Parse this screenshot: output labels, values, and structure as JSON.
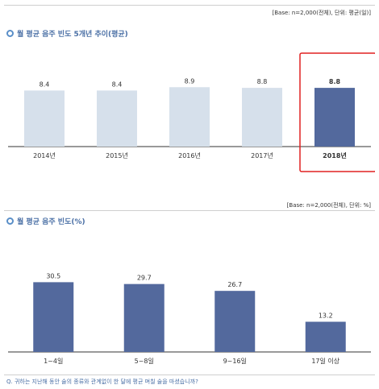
{
  "chart1": {
    "base_note": "[Base: n=2,000(전체), 단위: 평균(일)]",
    "title": "월 평균 음주 빈도 5개년 추이(평균)"
  },
  "chart2": {
    "base_note": "[Base: n=2,000(전체), 단위: %]",
    "title": "월 평균 음주 빈도(%)"
  },
  "question": "Q. 귀하는 지난해 동안 술의 종류와 관계없이 한 달에 평균 며칠 술을 마셨습니까?",
  "colors": {
    "light_bar": "#d6e0eb",
    "dark_bar": "#53699d",
    "highlight_box": "#e02020",
    "axis": "#333333",
    "title": "#4a6fa5"
  },
  "chart_data": [
    {
      "type": "bar",
      "categories": [
        "2014년",
        "2015년",
        "2016년",
        "2017년",
        "2018년"
      ],
      "values": [
        8.4,
        8.4,
        8.9,
        8.8,
        8.8
      ],
      "value_labels": [
        "8.4",
        "8.4",
        "8.9",
        "8.8",
        "8.8"
      ],
      "highlight_index": 4,
      "title": "월 평균 음주 빈도 5개년 추이(평균)",
      "xlabel": "",
      "ylabel": "",
      "ylim": [
        0,
        14
      ]
    },
    {
      "type": "bar",
      "categories": [
        "1~4일",
        "5~8일",
        "9~16일",
        "17일 이상"
      ],
      "values": [
        30.5,
        29.7,
        26.7,
        13.2
      ],
      "value_labels": [
        "30.5",
        "29.7",
        "26.7",
        "13.2"
      ],
      "title": "월 평균 음주 빈도(%)",
      "xlabel": "",
      "ylabel": "",
      "ylim": [
        0,
        50
      ]
    }
  ]
}
